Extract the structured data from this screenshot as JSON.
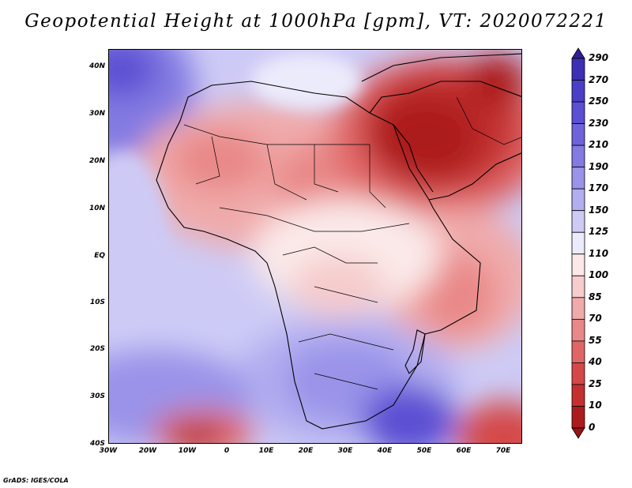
{
  "title": "Geopotential Height at 1000hPa [gpm], VT: 2020072221",
  "credit": "GrADS: IGES/COLA",
  "map": {
    "variable": "Geopotential Height",
    "level": "1000hPa",
    "units": "gpm",
    "valid_time": "2020072221",
    "lon_range": [
      -30,
      75
    ],
    "lat_range": [
      -40,
      45
    ],
    "lat_labels": [
      "40N",
      "30N",
      "20N",
      "10N",
      "EQ",
      "10S",
      "20S",
      "30S",
      "40S"
    ],
    "lon_labels": [
      "30W",
      "20W",
      "10W",
      "0",
      "10E",
      "20E",
      "30E",
      "40E",
      "50E",
      "60E",
      "70E"
    ]
  },
  "colorbar": {
    "labels": [
      "290",
      "270",
      "250",
      "230",
      "210",
      "190",
      "170",
      "150",
      "125",
      "110",
      "100",
      "85",
      "70",
      "55",
      "40",
      "25",
      "10",
      "0"
    ],
    "colors": [
      "#2e1f96",
      "#3d30b4",
      "#4a3fc8",
      "#5b50d3",
      "#6e63db",
      "#837ae2",
      "#9a93e9",
      "#b2aef0",
      "#cdcbf6",
      "#ecebfc",
      "#fbe9e9",
      "#f6cccc",
      "#f0aaaa",
      "#e98888",
      "#e06666",
      "#d44848",
      "#c43030",
      "#ad1c1c",
      "#961414"
    ]
  }
}
